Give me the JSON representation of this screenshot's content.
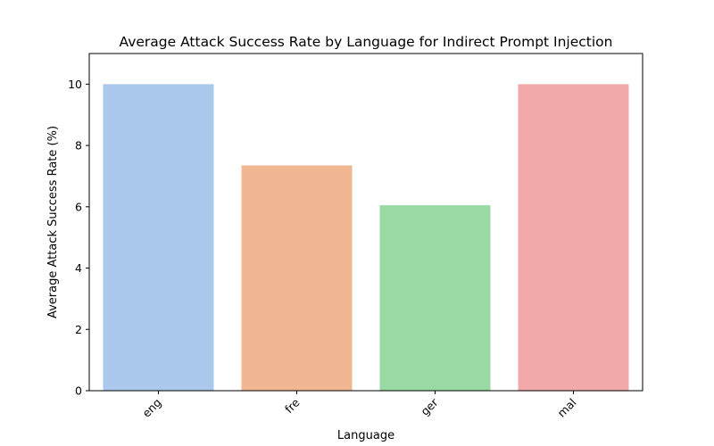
{
  "chart_data": {
    "type": "bar",
    "title": "Average Attack Success Rate by Language for Indirect Prompt Injection",
    "xlabel": "Language",
    "ylabel": "Average Attack Success Rate (%)",
    "categories": [
      "eng",
      "fre",
      "ger",
      "mal"
    ],
    "values": [
      10.0,
      7.35,
      6.05,
      10.0
    ],
    "colors": [
      "#abc9ed",
      "#f0b792",
      "#98d9a4",
      "#f1aaa9"
    ],
    "ylim": [
      0,
      11
    ],
    "yticks": [
      0,
      2,
      4,
      6,
      8,
      10
    ],
    "xtick_rotation_deg": 45,
    "grid": false,
    "legend": "none"
  }
}
